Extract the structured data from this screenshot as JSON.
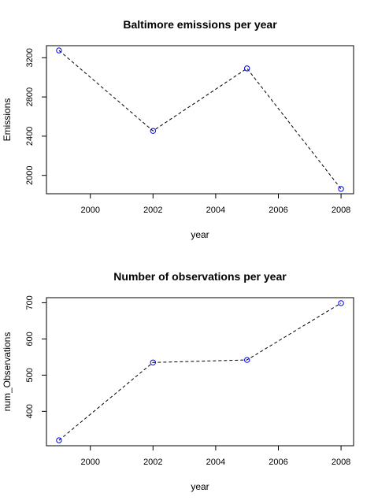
{
  "chart_data": [
    {
      "type": "line",
      "title": "Baltimore emissions per year",
      "xlabel": "year",
      "ylabel": "Emissions",
      "x": [
        1999,
        2002,
        2005,
        2008
      ],
      "values": [
        3274,
        2454,
        3091,
        1862
      ],
      "xlim": [
        1998.6,
        2008.4
      ],
      "ylim": [
        1813,
        3323
      ],
      "xticks": [
        2000,
        2002,
        2004,
        2006,
        2008
      ],
      "yticks": [
        2000,
        2400,
        2800,
        3200
      ],
      "point_color": "#0000ff",
      "line_color": "#000000"
    },
    {
      "type": "line",
      "title": "Number of observations per year",
      "xlabel": "year",
      "ylabel": "num_Observations",
      "x": [
        1999,
        2002,
        2005,
        2008
      ],
      "values": [
        320,
        535,
        542,
        699
      ],
      "xlim": [
        1998.6,
        2008.4
      ],
      "ylim": [
        305,
        714
      ],
      "xticks": [
        2000,
        2002,
        2004,
        2006,
        2008
      ],
      "yticks": [
        400,
        500,
        600,
        700
      ],
      "point_color": "#0000ff",
      "line_color": "#000000"
    }
  ]
}
